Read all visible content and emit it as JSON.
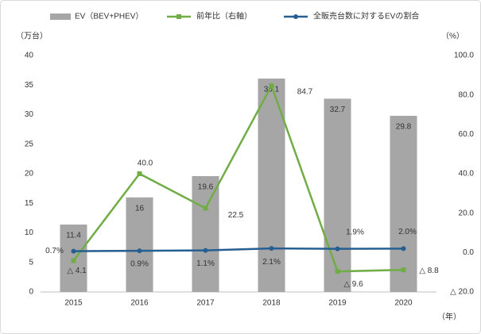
{
  "chart_data": {
    "type": "bar_line",
    "y_unit_label": "（万台）",
    "y2_unit_label": "（%）",
    "x_unit_label": "（年）",
    "categories": [
      "2015",
      "2016",
      "2017",
      "2018",
      "2019",
      "2020"
    ],
    "ylim": [
      0,
      40
    ],
    "yticks": [
      0,
      5,
      10,
      15,
      20,
      25,
      30,
      35,
      40
    ],
    "y2lim": [
      -20,
      100
    ],
    "y2ticks": [
      {
        "value": 100,
        "label": "100.0"
      },
      {
        "value": 80,
        "label": "80.0"
      },
      {
        "value": 60,
        "label": "60.0"
      },
      {
        "value": 40,
        "label": "40.0"
      },
      {
        "value": 20,
        "label": "20.0"
      },
      {
        "value": 0,
        "label": "0.0"
      },
      {
        "value": -20,
        "label": "△ 20.0"
      }
    ],
    "legend": "top",
    "series": [
      {
        "name": "EV（BEV+PHEV）",
        "type": "bar",
        "color": "#a6a6a6",
        "values": [
          11.4,
          16.0,
          19.6,
          36.1,
          32.7,
          29.8
        ]
      },
      {
        "name": "前年比（右軸）",
        "type": "line",
        "axis": "y2",
        "marker": "square",
        "color": "#70ad47",
        "values": [
          -4.1,
          40.0,
          22.5,
          84.7,
          -9.6,
          -8.8
        ],
        "value_labels": [
          "△ 4.1",
          "40.0",
          "22.5",
          "84.7",
          "△ 9.6",
          "△ 8.8"
        ]
      },
      {
        "name": "全販売台数に対するEVの割合",
        "type": "line",
        "axis": "y2",
        "marker": "circle",
        "color": "#255e91",
        "values": [
          0.7,
          0.9,
          1.1,
          2.1,
          1.9,
          2.0
        ],
        "value_labels": [
          "0.7%",
          "0.9%",
          "1.1%",
          "2.1%",
          "1.9%",
          "2.0%"
        ]
      }
    ]
  }
}
